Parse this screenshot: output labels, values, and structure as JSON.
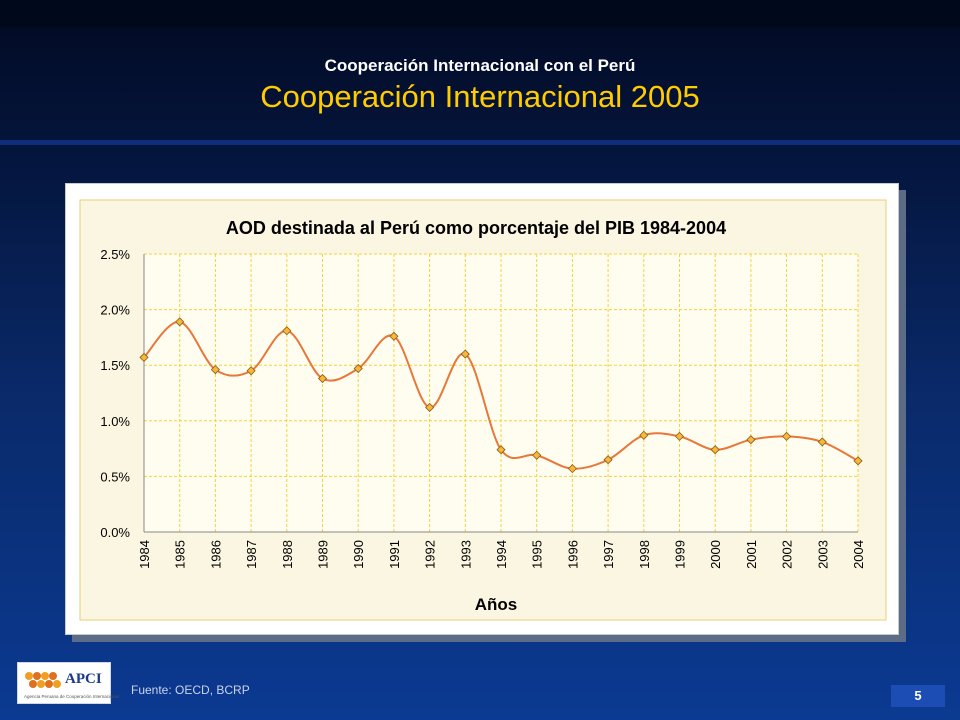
{
  "slide": {
    "subtitle": "Cooperación Internacional con el Perú",
    "title": "Cooperación Internacional 2005",
    "source": "Fuente: OECD, BCRP",
    "page_number": "5",
    "logo": {
      "text": "APCI",
      "tagline": "Agencia Peruana de Cooperación Internacional"
    },
    "colors": {
      "title": "#ffcc00",
      "series": "#e8773a",
      "marker": "#f5b83c",
      "plot_background": "#fbf6e1",
      "gridline": "#f2d23f"
    }
  },
  "chart_data": {
    "type": "line",
    "title": "AOD destinada al Perú como porcentaje del PIB 1984-2004",
    "xlabel": "Años",
    "ylabel": "",
    "categories": [
      "1984",
      "1985",
      "1986",
      "1987",
      "1988",
      "1989",
      "1990",
      "1991",
      "1992",
      "1993",
      "1994",
      "1995",
      "1996",
      "1997",
      "1998",
      "1999",
      "2000",
      "2001",
      "2002",
      "2003",
      "2004"
    ],
    "series": [
      {
        "name": "",
        "values": [
          1.57,
          1.89,
          1.46,
          1.45,
          1.81,
          1.38,
          1.47,
          1.76,
          1.12,
          1.6,
          0.74,
          0.69,
          0.57,
          0.65,
          0.87,
          0.86,
          0.74,
          0.83,
          0.86,
          0.81,
          0.64
        ]
      }
    ],
    "ylim": [
      0,
      2.5
    ],
    "yticks": [
      "0.0%",
      "0.5%",
      "1.0%",
      "1.5%",
      "2.0%",
      "2.5%"
    ],
    "ytick_values": [
      0,
      0.5,
      1.0,
      1.5,
      2.0,
      2.5
    ],
    "grid": true,
    "smooth": true,
    "legend": "none"
  }
}
